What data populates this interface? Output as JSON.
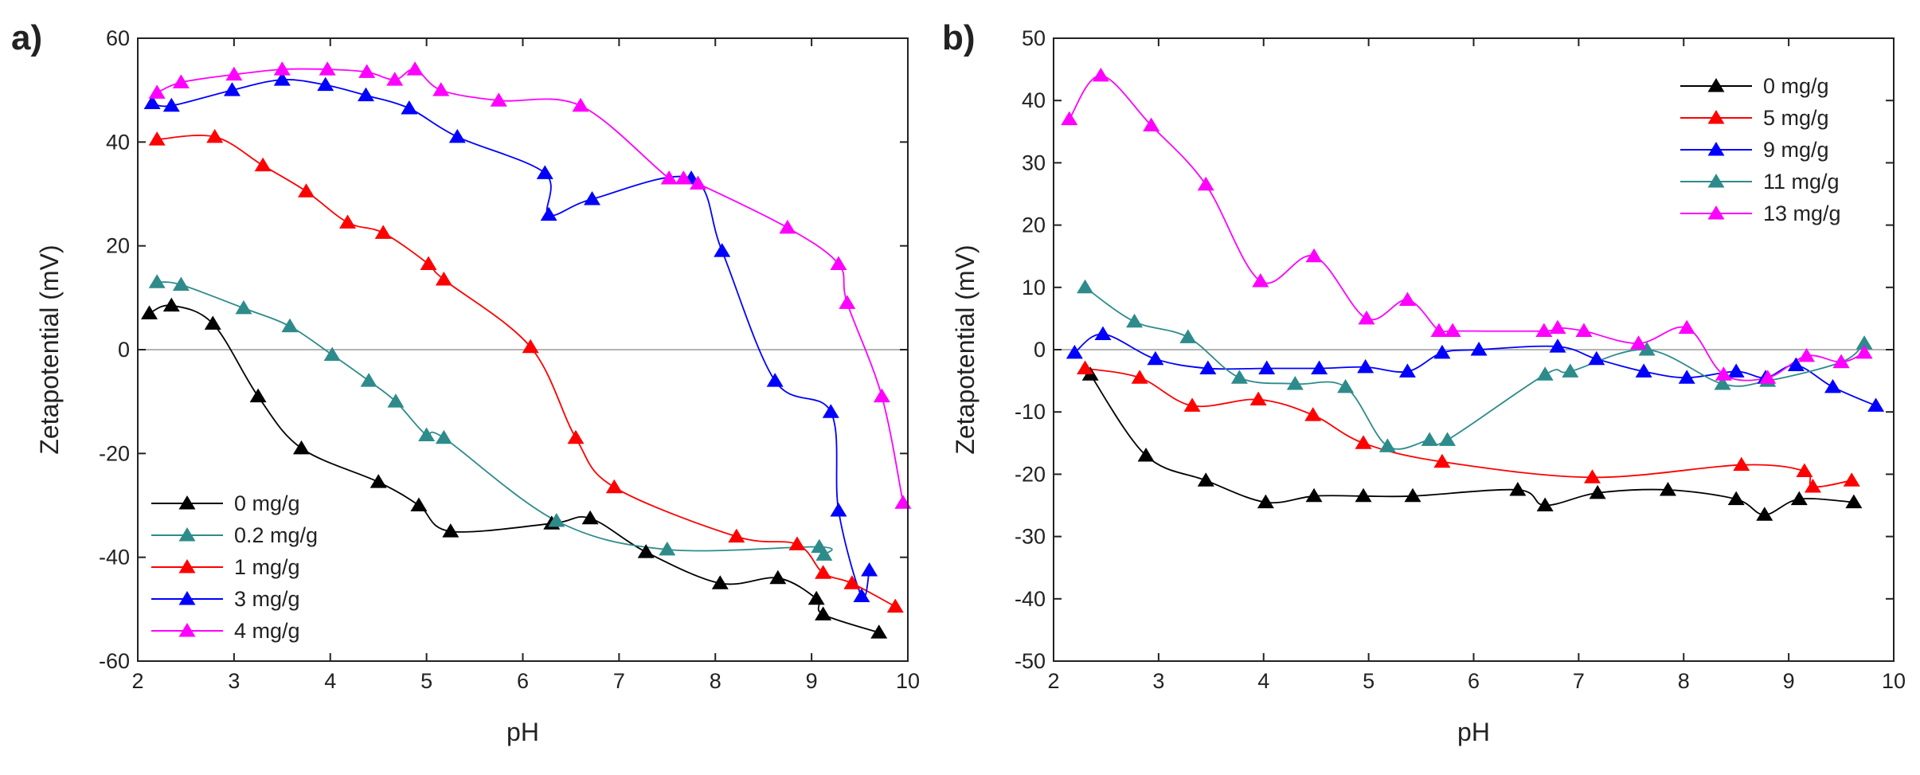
{
  "figure": {
    "panels": [
      "a)",
      "b)"
    ]
  },
  "chart_data": [
    {
      "type": "line",
      "panel_label": "a)",
      "xlabel": "pH",
      "ylabel": "Zetapotential (mV)",
      "xlim": [
        2,
        10
      ],
      "ylim": [
        -60,
        60
      ],
      "xticks": [
        2,
        3,
        4,
        5,
        6,
        7,
        8,
        9,
        10
      ],
      "yticks": [
        -60,
        -40,
        -20,
        0,
        20,
        40,
        60
      ],
      "zero_line": true,
      "legend_position": "bottom-left",
      "series": [
        {
          "name": "0 mg/g",
          "color": "#000000",
          "x": [
            2.12,
            2.35,
            2.78,
            3.25,
            3.7,
            4.5,
            4.92,
            5.25,
            6.3,
            6.7,
            7.28,
            8.05,
            8.65,
            9.05,
            9.12,
            9.7
          ],
          "y": [
            7,
            8.5,
            5,
            -9,
            -19,
            -25.5,
            -30,
            -35,
            -33.5,
            -32.5,
            -39,
            -45,
            -44,
            -48,
            -51,
            -54.5
          ]
        },
        {
          "name": "0.2 mg/g",
          "color": "#2e8b8b",
          "x": [
            2.2,
            2.45,
            3.1,
            3.58,
            4.02,
            4.4,
            4.68,
            5.0,
            5.18,
            6.35,
            7.5,
            9.08,
            9.13
          ],
          "y": [
            13,
            12.5,
            8,
            4.5,
            -1,
            -6,
            -10,
            -16.5,
            -17,
            -33,
            -38.5,
            -38,
            -39.5
          ]
        },
        {
          "name": "1 mg/g",
          "color": "#ff0000",
          "x": [
            2.2,
            2.8,
            3.3,
            3.75,
            4.18,
            4.55,
            5.02,
            5.18,
            6.08,
            6.55,
            6.95,
            8.22,
            8.85,
            9.12,
            9.42,
            9.87
          ],
          "y": [
            40.5,
            41,
            35.5,
            30.5,
            24.5,
            22.5,
            16.5,
            13.5,
            0.5,
            -17,
            -26.5,
            -36,
            -37.5,
            -43,
            -45,
            -49.5
          ]
        },
        {
          "name": "3 mg/g",
          "color": "#0000ff",
          "x": [
            2.15,
            2.35,
            2.98,
            3.5,
            3.95,
            4.37,
            4.82,
            5.32,
            6.23,
            6.27,
            6.72,
            7.75,
            8.07,
            8.62,
            9.2,
            9.28,
            9.52,
            9.6
          ],
          "y": [
            47.5,
            47,
            50,
            52,
            51,
            49,
            46.5,
            41,
            34,
            26,
            29,
            33,
            19,
            -6,
            -12,
            -31,
            -47.5,
            -42.5
          ]
        },
        {
          "name": "4 mg/g",
          "color": "#ff00ff",
          "x": [
            2.2,
            2.45,
            3.0,
            3.5,
            3.97,
            4.38,
            4.67,
            4.88,
            5.15,
            5.75,
            6.6,
            7.52,
            7.67,
            7.82,
            8.75,
            9.28,
            9.37,
            9.73,
            9.95
          ],
          "y": [
            49.5,
            51.5,
            53,
            54,
            54,
            53.5,
            52,
            54,
            50,
            48,
            47,
            33,
            33,
            32,
            23.5,
            16.5,
            9,
            -9,
            -29.5
          ]
        }
      ]
    },
    {
      "type": "line",
      "panel_label": "b)",
      "xlabel": "pH",
      "ylabel": "Zetapotential (mV)",
      "xlim": [
        2,
        10
      ],
      "ylim": [
        -50,
        50
      ],
      "xticks": [
        2,
        3,
        4,
        5,
        6,
        7,
        8,
        9,
        10
      ],
      "yticks": [
        -50,
        -40,
        -30,
        -20,
        -10,
        0,
        10,
        20,
        30,
        40,
        50
      ],
      "zero_line": true,
      "legend_position": "top-right",
      "series": [
        {
          "name": "0 mg/g",
          "color": "#000000",
          "x": [
            2.35,
            2.88,
            3.45,
            4.02,
            4.48,
            4.95,
            5.42,
            6.42,
            6.68,
            7.18,
            7.85,
            8.5,
            8.77,
            9.1,
            9.62
          ],
          "y": [
            -4,
            -17,
            -21,
            -24.5,
            -23.5,
            -23.5,
            -23.5,
            -22.5,
            -25,
            -23,
            -22.5,
            -24,
            -26.5,
            -24,
            -24.5
          ]
        },
        {
          "name": "5 mg/g",
          "color": "#ff0000",
          "x": [
            2.3,
            2.82,
            3.32,
            3.95,
            4.47,
            4.95,
            5.7,
            7.13,
            8.55,
            9.15,
            9.23,
            9.6
          ],
          "y": [
            -3,
            -4.5,
            -9,
            -8,
            -10.5,
            -15,
            -18,
            -20.5,
            -18.5,
            -19.5,
            -22,
            -21
          ]
        },
        {
          "name": "9 mg/g",
          "color": "#0000ff",
          "x": [
            2.2,
            2.47,
            2.97,
            3.47,
            4.03,
            4.53,
            4.97,
            5.37,
            5.7,
            6.05,
            6.8,
            7.17,
            7.62,
            8.03,
            8.5,
            8.78,
            9.07,
            9.42,
            9.83
          ],
          "y": [
            -0.5,
            2.5,
            -1.5,
            -3,
            -3,
            -3,
            -2.8,
            -3.5,
            -0.5,
            0,
            0.5,
            -1.5,
            -3.5,
            -4.5,
            -3.5,
            -4.5,
            -2.5,
            -6,
            -9
          ]
        },
        {
          "name": "11 mg/g",
          "color": "#2e8b8b",
          "x": [
            2.3,
            2.77,
            3.28,
            3.77,
            4.3,
            4.78,
            5.18,
            5.58,
            5.75,
            6.68,
            6.92,
            7.65,
            8.37,
            8.8,
            9.5,
            9.72
          ],
          "y": [
            10,
            4.5,
            2,
            -4.5,
            -5.5,
            -6,
            -15.5,
            -14.5,
            -14.5,
            -4,
            -3.5,
            0,
            -5.5,
            -5,
            -2,
            1
          ]
        },
        {
          "name": "13 mg/g",
          "color": "#ff00ff",
          "x": [
            2.15,
            2.45,
            2.93,
            3.45,
            3.97,
            4.48,
            4.98,
            5.37,
            5.67,
            5.8,
            6.67,
            6.8,
            7.05,
            7.57,
            8.03,
            8.38,
            8.8,
            9.17,
            9.5,
            9.72
          ],
          "y": [
            37,
            44,
            36,
            26.5,
            11,
            15,
            5,
            8,
            3,
            3,
            3,
            3.5,
            3,
            1,
            3.5,
            -4,
            -4.5,
            -1,
            -2,
            -0.5
          ]
        }
      ]
    }
  ]
}
